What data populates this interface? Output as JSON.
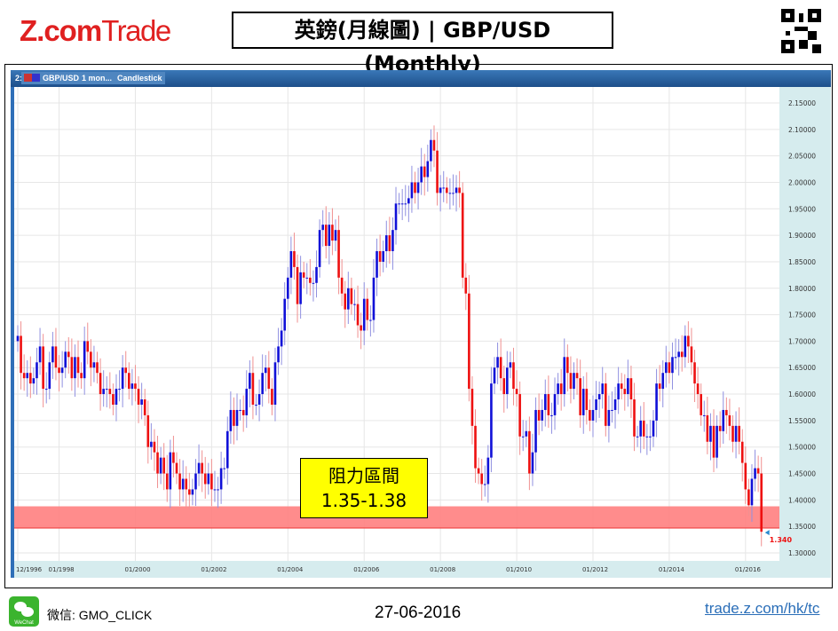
{
  "header": {
    "logo_main": "Z.com",
    "logo_sub": "Trade",
    "title": "英鎊(月線圖) | GBP/USD (Monthly)"
  },
  "toolbar": {
    "prefix": "2:",
    "symbol": "GBP/USD",
    "period": "1 mon...",
    "chart_type": "Candlestick"
  },
  "annotation": {
    "line1": "阻力區間",
    "line2": "1.35-1.38",
    "zone": [
      1.347,
      1.388
    ]
  },
  "colors": {
    "up": "#1010d8",
    "down": "#ee1010",
    "zone": "#ff8080",
    "annotation_bg": "#ffff00",
    "axis_bg": "#d6ecee"
  },
  "footer": {
    "wechat": "微信: GMO_CLICK",
    "wechat_icon_label": "WeChat",
    "date": "27-06-2016",
    "link": "trade.z.com/hk/tc"
  },
  "chart_data": {
    "type": "candlestick",
    "ylim": [
      1.29,
      2.16
    ],
    "y_ticks": [
      "2.15000",
      "2.10000",
      "2.05000",
      "2.00000",
      "1.95000",
      "1.90000",
      "1.85000",
      "1.80000",
      "1.75000",
      "1.70000",
      "1.65000",
      "1.60000",
      "1.55000",
      "1.50000",
      "1.45000",
      "1.40000",
      "1.35000",
      "1.30000"
    ],
    "x_ticks": [
      "12/1996",
      "01/1998",
      "01/2000",
      "01/2002",
      "01/2004",
      "01/2006",
      "01/2008",
      "01/2010",
      "01/2012",
      "01/2014",
      "01/2016"
    ],
    "start": "12/1996",
    "open_first": 1.7,
    "last_price": "1.340",
    "monthly_close": [
      1.71,
      1.64,
      1.63,
      1.64,
      1.62,
      1.63,
      1.66,
      1.69,
      1.61,
      1.61,
      1.66,
      1.69,
      1.65,
      1.64,
      1.65,
      1.68,
      1.67,
      1.63,
      1.67,
      1.64,
      1.63,
      1.7,
      1.68,
      1.65,
      1.66,
      1.64,
      1.6,
      1.61,
      1.61,
      1.6,
      1.58,
      1.61,
      1.61,
      1.65,
      1.64,
      1.61,
      1.62,
      1.61,
      1.58,
      1.59,
      1.56,
      1.5,
      1.51,
      1.49,
      1.45,
      1.48,
      1.45,
      1.42,
      1.49,
      1.47,
      1.45,
      1.42,
      1.44,
      1.42,
      1.41,
      1.42,
      1.45,
      1.47,
      1.45,
      1.43,
      1.45,
      1.42,
      1.42,
      1.42,
      1.46,
      1.46,
      1.53,
      1.57,
      1.54,
      1.57,
      1.57,
      1.56,
      1.61,
      1.64,
      1.58,
      1.58,
      1.6,
      1.64,
      1.65,
      1.61,
      1.58,
      1.66,
      1.69,
      1.72,
      1.78,
      1.82,
      1.87,
      1.84,
      1.77,
      1.83,
      1.82,
      1.82,
      1.81,
      1.81,
      1.84,
      1.91,
      1.92,
      1.88,
      1.92,
      1.89,
      1.91,
      1.82,
      1.79,
      1.76,
      1.8,
      1.77,
      1.77,
      1.73,
      1.72,
      1.78,
      1.74,
      1.74,
      1.82,
      1.87,
      1.85,
      1.87,
      1.9,
      1.87,
      1.91,
      1.96,
      1.96,
      1.96,
      1.96,
      1.97,
      2.0,
      1.98,
      2.0,
      2.03,
      2.01,
      2.04,
      2.08,
      2.06,
      1.98,
      1.99,
      1.99,
      1.98,
      1.98,
      1.98,
      1.99,
      1.98,
      1.82,
      1.79,
      1.61,
      1.54,
      1.46,
      1.45,
      1.43,
      1.43,
      1.48,
      1.62,
      1.65,
      1.67,
      1.63,
      1.6,
      1.65,
      1.66,
      1.61,
      1.6,
      1.52,
      1.52,
      1.53,
      1.45,
      1.49,
      1.57,
      1.55,
      1.57,
      1.6,
      1.56,
      1.56,
      1.6,
      1.62,
      1.6,
      1.67,
      1.64,
      1.61,
      1.64,
      1.63,
      1.56,
      1.61,
      1.57,
      1.55,
      1.57,
      1.59,
      1.6,
      1.62,
      1.54,
      1.57,
      1.57,
      1.59,
      1.62,
      1.61,
      1.6,
      1.63,
      1.59,
      1.52,
      1.52,
      1.55,
      1.52,
      1.52,
      1.52,
      1.55,
      1.62,
      1.61,
      1.64,
      1.66,
      1.64,
      1.67,
      1.67,
      1.68,
      1.67,
      1.71,
      1.69,
      1.66,
      1.62,
      1.6,
      1.56,
      1.56,
      1.51,
      1.54,
      1.48,
      1.54,
      1.53,
      1.57,
      1.56,
      1.54,
      1.51,
      1.54,
      1.51,
      1.47,
      1.42,
      1.39,
      1.44,
      1.46,
      1.45,
      1.34
    ]
  }
}
